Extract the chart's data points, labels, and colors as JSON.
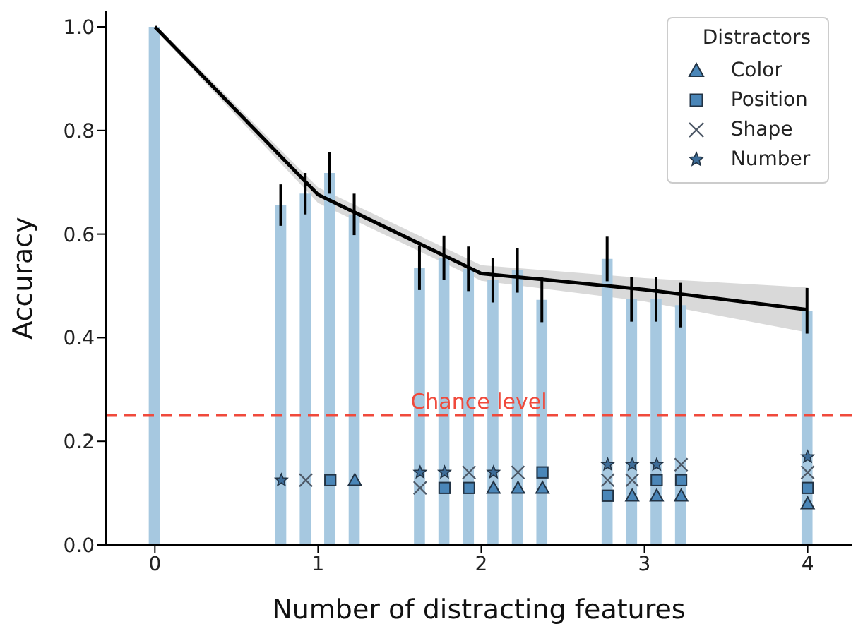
{
  "chart_data": {
    "type": "bar",
    "xlabel": "Number of distracting features",
    "ylabel": "Accuracy",
    "legend": "top right",
    "legend_title": "Distractors",
    "xlim": [
      -0.3,
      4.27
    ],
    "xticks": [
      0,
      1,
      2,
      3,
      4
    ],
    "ylim": [
      0,
      1.03
    ],
    "yticks": [
      {
        "value": 0,
        "label": "0.0"
      },
      {
        "value": 0.2,
        "label": "0.2"
      },
      {
        "value": 0.4,
        "label": "0.4"
      },
      {
        "value": 0.6,
        "label": "0.6"
      },
      {
        "value": 0.8,
        "label": "0.8"
      },
      {
        "value": 1.0,
        "label": "1.0"
      }
    ],
    "ref_lines": [
      {
        "axis": "y",
        "value": 0.25,
        "label": "Chance level",
        "color": "#f04a3c",
        "line_style": "dashed"
      }
    ],
    "series": [
      {
        "color": "#a6c8e0",
        "x": [
          0,
          0.775,
          0.925,
          1.075,
          1.225,
          1.625,
          1.775,
          1.925,
          2.075,
          2.225,
          2.375,
          2.775,
          2.925,
          3.075,
          3.225,
          4
        ],
        "values": [
          1.0,
          0.656,
          0.678,
          0.718,
          0.638,
          0.535,
          0.554,
          0.533,
          0.511,
          0.53,
          0.473,
          0.552,
          0.474,
          0.474,
          0.463,
          0.452
        ],
        "errors": [
          null,
          0.04,
          0.04,
          0.04,
          0.04,
          0.043,
          0.043,
          0.043,
          0.043,
          0.043,
          0.043,
          0.043,
          0.043,
          0.043,
          0.043,
          0.044
        ]
      },
      {
        "type": "line",
        "color": "#000000",
        "marker": "none",
        "x": [
          0,
          1,
          2,
          3,
          4
        ],
        "values": [
          1.0,
          0.676,
          0.524,
          0.493,
          0.454
        ],
        "lower": [
          0.995,
          0.66,
          0.51,
          0.47,
          0.41
        ],
        "upper": [
          1.005,
          0.69,
          0.54,
          0.515,
          0.497
        ]
      },
      {
        "type": "scatter",
        "name": "Color",
        "marker": "triangle",
        "color": "#4a86b8",
        "x": [
          1.225,
          2.075,
          2.225,
          2.375,
          2.925,
          3.075,
          3.225,
          4
        ],
        "values": [
          0.125,
          0.11,
          0.11,
          0.11,
          0.095,
          0.095,
          0.095,
          0.08
        ]
      },
      {
        "type": "scatter",
        "name": "Position",
        "marker": "square",
        "color": "#4a86b8",
        "x": [
          1.075,
          1.775,
          1.925,
          2.375,
          2.775,
          3.075,
          3.225,
          4
        ],
        "values": [
          0.125,
          0.11,
          0.11,
          0.14,
          0.095,
          0.125,
          0.125,
          0.11
        ]
      },
      {
        "type": "scatter",
        "name": "Shape",
        "marker": "cross",
        "color": "#4d5866",
        "x": [
          0.925,
          1.625,
          1.925,
          2.225,
          2.775,
          2.925,
          3.225,
          4
        ],
        "values": [
          0.125,
          0.11,
          0.14,
          0.14,
          0.125,
          0.125,
          0.155,
          0.14
        ]
      },
      {
        "type": "scatter",
        "name": "Number",
        "marker": "star",
        "color": "#3d6d99",
        "x": [
          0.775,
          1.625,
          1.775,
          2.075,
          2.775,
          2.925,
          3.075,
          4
        ],
        "values": [
          0.125,
          0.14,
          0.14,
          0.14,
          0.155,
          0.155,
          0.155,
          0.17
        ]
      }
    ]
  }
}
